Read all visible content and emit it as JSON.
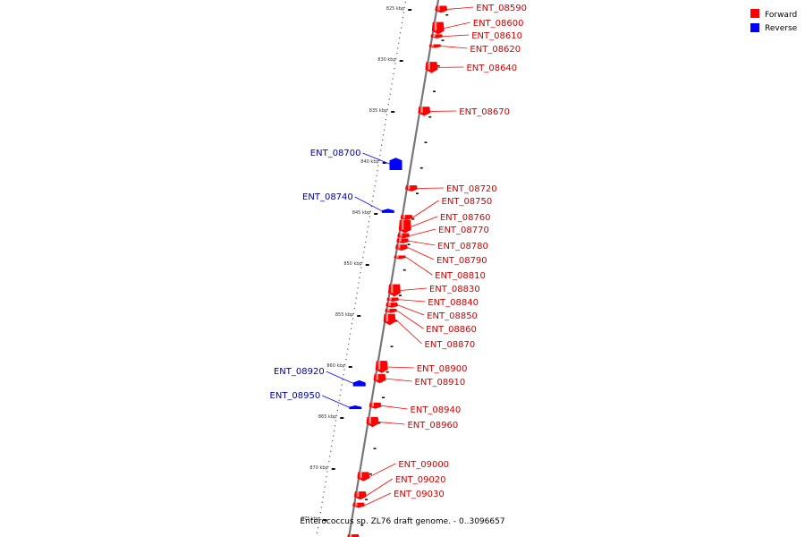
{
  "title": "Enterococcus sp. ZL76 draft genome. - 0..3096657",
  "colors": {
    "forward": "#ff0000",
    "reverse": "#0000ff",
    "forward_text": "#cc0000",
    "reverse_text": "#0000aa",
    "backbone": "#777777"
  },
  "legend": [
    {
      "label": "Forward",
      "color": "#ff0000"
    },
    {
      "label": "Reverse",
      "color": "#0000ff"
    }
  ],
  "ticks": [
    {
      "kbp": 825,
      "label": "825 kbp"
    },
    {
      "kbp": 830,
      "label": "830 kbp"
    },
    {
      "kbp": 835,
      "label": "835 kbp"
    },
    {
      "kbp": 840,
      "label": "840 kbp"
    },
    {
      "kbp": 845,
      "label": "845 kbp"
    },
    {
      "kbp": 850,
      "label": "850 kbp"
    },
    {
      "kbp": 855,
      "label": "855 kbp"
    },
    {
      "kbp": 860,
      "label": "860 kbp"
    },
    {
      "kbp": 865,
      "label": "865 kbp"
    },
    {
      "kbp": 870,
      "label": "870 kbp"
    },
    {
      "kbp": 875,
      "label": "875 kbp"
    }
  ],
  "genes": [
    {
      "name": "ENT_08590",
      "strand": "+",
      "start_kbp": 824.6,
      "end_kbp": 825.3
    },
    {
      "name": "ENT_08600",
      "strand": "+",
      "start_kbp": 826.2,
      "end_kbp": 827.4
    },
    {
      "name": "ENT_08610",
      "strand": "+",
      "start_kbp": 827.4,
      "end_kbp": 827.8
    },
    {
      "name": "ENT_08620",
      "strand": "+",
      "start_kbp": 828.4,
      "end_kbp": 828.7
    },
    {
      "name": "ENT_08640",
      "strand": "+",
      "start_kbp": 830.1,
      "end_kbp": 831.2
    },
    {
      "name": "ENT_08670",
      "strand": "+",
      "start_kbp": 834.5,
      "end_kbp": 835.4
    },
    {
      "name": "ENT_08700",
      "strand": "-",
      "start_kbp": 839.5,
      "end_kbp": 840.7
    },
    {
      "name": "ENT_08720",
      "strand": "+",
      "start_kbp": 842.2,
      "end_kbp": 842.8
    },
    {
      "name": "ENT_08740",
      "strand": "-",
      "start_kbp": 844.5,
      "end_kbp": 844.9
    },
    {
      "name": "ENT_08750",
      "strand": "+",
      "start_kbp": 845.1,
      "end_kbp": 845.6
    },
    {
      "name": "ENT_08760",
      "strand": "+",
      "start_kbp": 845.6,
      "end_kbp": 846.9
    },
    {
      "name": "ENT_08770",
      "strand": "+",
      "start_kbp": 846.9,
      "end_kbp": 847.4
    },
    {
      "name": "ENT_08780",
      "strand": "+",
      "start_kbp": 847.4,
      "end_kbp": 847.9
    },
    {
      "name": "ENT_08790",
      "strand": "+",
      "start_kbp": 848.0,
      "end_kbp": 848.6
    },
    {
      "name": "ENT_08810",
      "strand": "+",
      "start_kbp": 849.1,
      "end_kbp": 849.4
    },
    {
      "name": "ENT_08830",
      "strand": "+",
      "start_kbp": 851.9,
      "end_kbp": 853.1
    },
    {
      "name": "ENT_08840",
      "strand": "+",
      "start_kbp": 853.2,
      "end_kbp": 853.6
    },
    {
      "name": "ENT_08850",
      "strand": "+",
      "start_kbp": 853.7,
      "end_kbp": 854.2
    },
    {
      "name": "ENT_08860",
      "strand": "+",
      "start_kbp": 854.3,
      "end_kbp": 854.7
    },
    {
      "name": "ENT_08870",
      "strand": "+",
      "start_kbp": 854.8,
      "end_kbp": 855.9
    },
    {
      "name": "ENT_08900",
      "strand": "+",
      "start_kbp": 859.4,
      "end_kbp": 860.6
    },
    {
      "name": "ENT_08910",
      "strand": "+",
      "start_kbp": 860.7,
      "end_kbp": 861.6
    },
    {
      "name": "ENT_08920",
      "strand": "-",
      "start_kbp": 861.3,
      "end_kbp": 861.9
    },
    {
      "name": "ENT_08940",
      "strand": "+",
      "start_kbp": 863.5,
      "end_kbp": 864.1
    },
    {
      "name": "ENT_08950",
      "strand": "-",
      "start_kbp": 863.8,
      "end_kbp": 864.1
    },
    {
      "name": "ENT_08960",
      "strand": "+",
      "start_kbp": 864.9,
      "end_kbp": 865.9
    },
    {
      "name": "ENT_09000",
      "strand": "+",
      "start_kbp": 870.3,
      "end_kbp": 871.2
    },
    {
      "name": "ENT_09020",
      "strand": "+",
      "start_kbp": 872.2,
      "end_kbp": 873.0
    },
    {
      "name": "ENT_09030",
      "strand": "+",
      "start_kbp": 873.3,
      "end_kbp": 873.8
    },
    {
      "name": "",
      "strand": "+",
      "start_kbp": 876.4,
      "end_kbp": 877.2
    }
  ]
}
